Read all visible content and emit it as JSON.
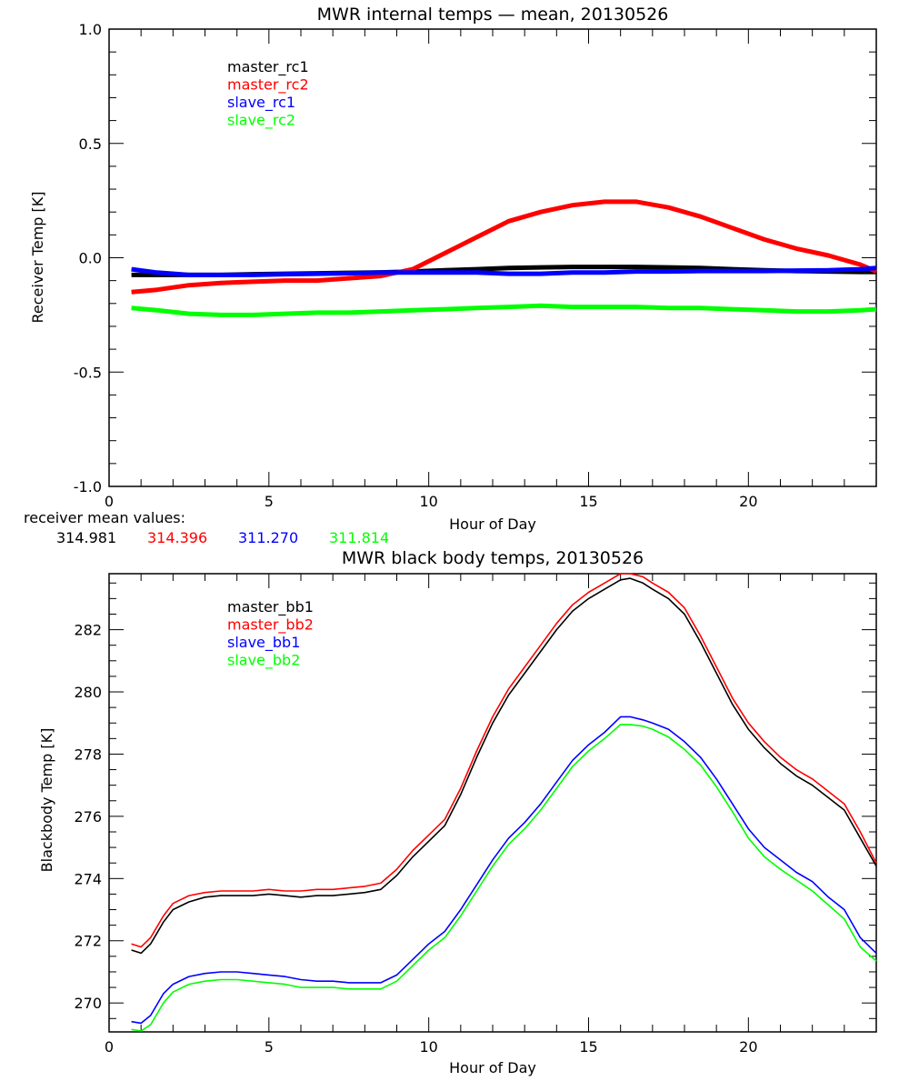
{
  "chart_data": [
    {
      "type": "line",
      "title": "MWR internal temps — mean, 20130526",
      "xlabel": "Hour of Day",
      "ylabel": "Receiver Temp [K]",
      "xlim": [
        0,
        24
      ],
      "ylim": [
        -1.0,
        1.0
      ],
      "xticks": [
        "0",
        "5",
        "10",
        "15",
        "20"
      ],
      "yticks": [
        "1.0",
        "0.5",
        "0.0",
        "-0.5",
        "-1.0"
      ],
      "ytick_values": [
        1.0,
        0.5,
        0.0,
        -0.5,
        -1.0
      ],
      "xtick_values": [
        0,
        5,
        10,
        15,
        20
      ],
      "legend_position": "top-left-inside",
      "grid": false,
      "x": [
        0.7,
        1.5,
        2.5,
        3.5,
        4.5,
        5.5,
        6.5,
        7.5,
        8.5,
        9.5,
        10.5,
        11.5,
        12.5,
        13.5,
        14.5,
        15.5,
        16.5,
        17.5,
        18.5,
        19.5,
        20.5,
        21.5,
        22.5,
        23.5,
        24.0
      ],
      "series": [
        {
          "name": "master_rc1",
          "color": "#000000",
          "values": [
            -0.075,
            -0.075,
            -0.075,
            -0.075,
            -0.072,
            -0.07,
            -0.068,
            -0.066,
            -0.064,
            -0.06,
            -0.055,
            -0.05,
            -0.045,
            -0.042,
            -0.04,
            -0.04,
            -0.04,
            -0.042,
            -0.045,
            -0.05,
            -0.055,
            -0.058,
            -0.06,
            -0.062,
            -0.062
          ]
        },
        {
          "name": "master_rc2",
          "color": "#ff0000",
          "values": [
            -0.15,
            -0.14,
            -0.12,
            -0.11,
            -0.105,
            -0.1,
            -0.1,
            -0.09,
            -0.08,
            -0.05,
            0.02,
            0.09,
            0.16,
            0.2,
            0.23,
            0.245,
            0.245,
            0.22,
            0.18,
            0.13,
            0.08,
            0.04,
            0.01,
            -0.03,
            -0.06
          ]
        },
        {
          "name": "slave_rc1",
          "color": "#0000ff",
          "values": [
            -0.05,
            -0.065,
            -0.075,
            -0.075,
            -0.075,
            -0.072,
            -0.07,
            -0.068,
            -0.065,
            -0.065,
            -0.065,
            -0.065,
            -0.07,
            -0.07,
            -0.065,
            -0.065,
            -0.06,
            -0.06,
            -0.058,
            -0.058,
            -0.058,
            -0.056,
            -0.055,
            -0.05,
            -0.045
          ]
        },
        {
          "name": "slave_rc2",
          "color": "#00ff00",
          "values": [
            -0.22,
            -0.23,
            -0.245,
            -0.25,
            -0.25,
            -0.245,
            -0.24,
            -0.24,
            -0.235,
            -0.23,
            -0.225,
            -0.22,
            -0.215,
            -0.21,
            -0.215,
            -0.215,
            -0.215,
            -0.22,
            -0.22,
            -0.225,
            -0.23,
            -0.235,
            -0.235,
            -0.23,
            -0.225
          ]
        }
      ],
      "annotation": {
        "label": "receiver mean values:",
        "values": [
          {
            "text": "314.981",
            "color": "#000000"
          },
          {
            "text": "314.396",
            "color": "#ff0000"
          },
          {
            "text": "311.270",
            "color": "#0000ff"
          },
          {
            "text": "311.814",
            "color": "#00ff00"
          }
        ]
      }
    },
    {
      "type": "line",
      "title": "MWR black body temps, 20130526",
      "xlabel": "Hour of Day",
      "ylabel": "Blackbody Temp [K]",
      "xlim": [
        0,
        24
      ],
      "ylim": [
        269.07,
        283.8
      ],
      "xticks": [
        "0",
        "5",
        "10",
        "15",
        "20"
      ],
      "xtick_values": [
        0,
        5,
        10,
        15,
        20
      ],
      "yticks": [
        "270",
        "272",
        "274",
        "276",
        "278",
        "280",
        "282"
      ],
      "ytick_values": [
        270,
        272,
        274,
        276,
        278,
        280,
        282
      ],
      "legend_position": "top-left-inside",
      "grid": false,
      "x": [
        0.7,
        1.0,
        1.3,
        1.7,
        2.0,
        2.5,
        3.0,
        3.5,
        4.0,
        4.5,
        5.0,
        5.5,
        6.0,
        6.5,
        7.0,
        7.5,
        8.0,
        8.5,
        9.0,
        9.5,
        10.0,
        10.5,
        11.0,
        11.5,
        12.0,
        12.5,
        13.0,
        13.5,
        14.0,
        14.5,
        15.0,
        15.5,
        16.0,
        16.3,
        16.7,
        17.0,
        17.5,
        18.0,
        18.5,
        19.0,
        19.5,
        20.0,
        20.5,
        21.0,
        21.5,
        22.0,
        22.5,
        23.0,
        23.5,
        24.0
      ],
      "series": [
        {
          "name": "master_bb1",
          "color": "#000000",
          "values": [
            271.7,
            271.6,
            271.9,
            272.6,
            273.0,
            273.25,
            273.4,
            273.45,
            273.45,
            273.45,
            273.5,
            273.45,
            273.4,
            273.45,
            273.45,
            273.5,
            273.55,
            273.65,
            274.1,
            274.7,
            275.2,
            275.7,
            276.7,
            277.9,
            279.0,
            279.9,
            280.6,
            281.3,
            282.0,
            282.6,
            283.0,
            283.3,
            283.6,
            283.65,
            283.5,
            283.3,
            283.0,
            282.5,
            281.6,
            280.6,
            279.6,
            278.8,
            278.2,
            277.7,
            277.3,
            277.0,
            276.6,
            276.2,
            275.3,
            274.4
          ]
        },
        {
          "name": "master_bb2",
          "color": "#ff0000",
          "values": [
            271.9,
            271.8,
            272.1,
            272.8,
            273.2,
            273.45,
            273.55,
            273.6,
            273.6,
            273.6,
            273.65,
            273.6,
            273.6,
            273.65,
            273.65,
            273.7,
            273.75,
            273.85,
            274.3,
            274.9,
            275.4,
            275.9,
            276.9,
            278.1,
            279.2,
            280.1,
            280.8,
            281.5,
            282.2,
            282.8,
            283.2,
            283.5,
            283.8,
            283.8,
            283.7,
            283.5,
            283.2,
            282.7,
            281.8,
            280.8,
            279.8,
            279.0,
            278.4,
            277.9,
            277.5,
            277.2,
            276.8,
            276.4,
            275.5,
            274.5
          ]
        },
        {
          "name": "slave_bb1",
          "color": "#0000ff",
          "values": [
            269.4,
            269.35,
            269.6,
            270.3,
            270.6,
            270.85,
            270.95,
            271.0,
            271.0,
            270.95,
            270.9,
            270.85,
            270.75,
            270.7,
            270.7,
            270.65,
            270.65,
            270.65,
            270.9,
            271.4,
            271.9,
            272.3,
            273.0,
            273.8,
            274.6,
            275.3,
            275.8,
            276.4,
            277.1,
            277.8,
            278.3,
            278.7,
            279.2,
            279.2,
            279.1,
            279.0,
            278.8,
            278.4,
            277.9,
            277.2,
            276.4,
            275.6,
            275.0,
            274.6,
            274.2,
            273.9,
            273.4,
            273.0,
            272.1,
            271.6
          ]
        },
        {
          "name": "slave_bb2",
          "color": "#00ff00",
          "values": [
            269.15,
            269.1,
            269.3,
            270.0,
            270.35,
            270.6,
            270.7,
            270.75,
            270.75,
            270.7,
            270.65,
            270.6,
            270.5,
            270.5,
            270.5,
            270.45,
            270.45,
            270.45,
            270.7,
            271.2,
            271.7,
            272.1,
            272.8,
            273.6,
            274.4,
            275.1,
            275.6,
            276.2,
            276.9,
            277.6,
            278.1,
            278.5,
            278.95,
            278.95,
            278.9,
            278.8,
            278.55,
            278.15,
            277.65,
            276.95,
            276.15,
            275.3,
            274.7,
            274.3,
            273.95,
            273.6,
            273.15,
            272.7,
            271.8,
            271.35
          ]
        }
      ]
    }
  ]
}
